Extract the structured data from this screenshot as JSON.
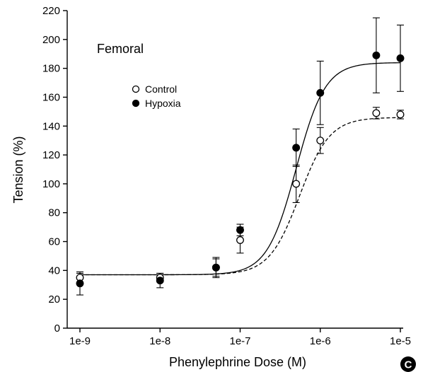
{
  "chart_data": {
    "type": "scatter",
    "panel_title": "Femoral",
    "xlabel": "Phenylephrine Dose (M)",
    "ylabel": "Tension (%)",
    "x_scale": "log",
    "xlim": [
      1e-09,
      1e-05
    ],
    "ylim": [
      0,
      220
    ],
    "x_ticks": [
      1e-09,
      1e-08,
      1e-07,
      1e-06,
      1e-05
    ],
    "x_tick_labels": [
      "1e-9",
      "1e-8",
      "1e-7",
      "1e-6",
      "1e-5"
    ],
    "y_ticks": [
      0,
      20,
      40,
      60,
      80,
      100,
      120,
      140,
      160,
      180,
      200,
      220
    ],
    "y_tick_labels": [
      "0",
      "20",
      "40",
      "60",
      "80",
      "100",
      "120",
      "140",
      "160",
      "180",
      "200",
      "220"
    ],
    "grid": false,
    "legend_position": "upper-left",
    "badge": "C",
    "series": [
      {
        "name": "Control",
        "marker": "open-circle",
        "line_style": "dashed",
        "x": [
          1e-09,
          1e-08,
          5e-08,
          1e-07,
          5e-07,
          1e-06,
          5e-06,
          1e-05
        ],
        "y": [
          35,
          35,
          42,
          61,
          100,
          130,
          149,
          148
        ],
        "err": [
          3,
          3,
          6,
          9,
          13,
          9,
          4,
          3
        ],
        "fit_curve": {
          "bottom": 37,
          "top": 146,
          "ec50": 5.5e-07,
          "hill": 2.3
        }
      },
      {
        "name": "Hypoxia",
        "marker": "filled-circle",
        "line_style": "solid",
        "x": [
          1e-09,
          1e-08,
          5e-08,
          1e-07,
          5e-07,
          1e-06,
          5e-06,
          1e-05
        ],
        "y": [
          31,
          33,
          42,
          68,
          125,
          163,
          189,
          187
        ],
        "err": [
          8,
          5,
          7,
          4,
          13,
          22,
          26,
          23
        ],
        "fit_curve": {
          "bottom": 37,
          "top": 184,
          "ec50": 5e-07,
          "hill": 2.4
        }
      }
    ]
  }
}
